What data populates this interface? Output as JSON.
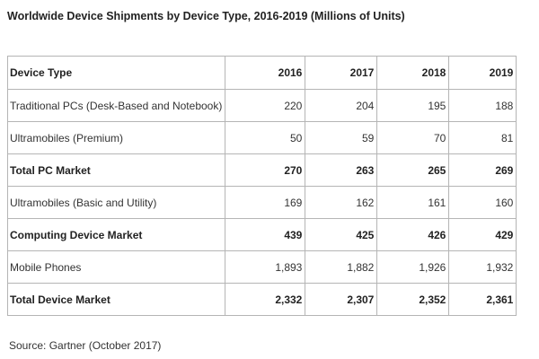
{
  "title": "Worldwide Device Shipments by Device Type, 2016-2019 (Millions of Units)",
  "table": {
    "header": [
      "Device Type",
      "2016",
      "2017",
      "2018",
      "2019"
    ],
    "rows": [
      {
        "label": "Traditional PCs (Desk-Based and Notebook)",
        "values": [
          "220",
          "204",
          "195",
          "188"
        ],
        "bold": false
      },
      {
        "label": "Ultramobiles (Premium)",
        "values": [
          "50",
          "59",
          "70",
          "81"
        ],
        "bold": false
      },
      {
        "label": "Total PC Market",
        "values": [
          "270",
          "263",
          "265",
          "269"
        ],
        "bold": true
      },
      {
        "label": "Ultramobiles (Basic and Utility)",
        "values": [
          "169",
          "162",
          "161",
          "160"
        ],
        "bold": false
      },
      {
        "label": "Computing Device Market",
        "values": [
          "439",
          "425",
          "426",
          "429"
        ],
        "bold": true
      },
      {
        "label": "Mobile Phones",
        "values": [
          "1,893",
          "1,882",
          "1,926",
          "1,932"
        ],
        "bold": false
      },
      {
        "label": "Total Device Market",
        "values": [
          "2,332",
          "2,307",
          "2,352",
          "2,361"
        ],
        "bold": true
      }
    ]
  },
  "source": "Source: Gartner (October 2017)"
}
